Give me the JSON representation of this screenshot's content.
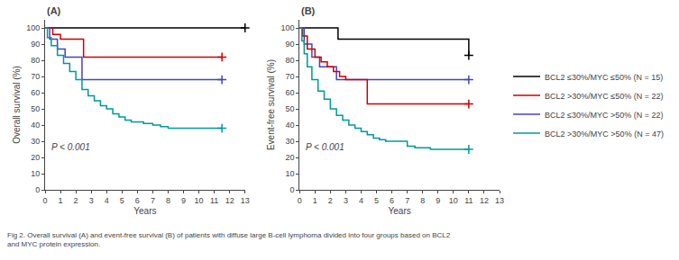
{
  "chart_data": [
    {
      "type": "line",
      "title": "(A)",
      "x_label": "Years",
      "y_label": "Overall survival (%)",
      "xlim": [
        0,
        13
      ],
      "ylim": [
        0,
        105
      ],
      "xticks": [
        0,
        1,
        2,
        3,
        4,
        5,
        6,
        7,
        8,
        9,
        10,
        11,
        12,
        13
      ],
      "yticks": [
        0,
        10,
        20,
        30,
        40,
        50,
        60,
        70,
        80,
        90,
        100
      ],
      "grid": false,
      "legend": "right",
      "line_style": "step",
      "annotations": [
        {
          "text": "P < 0.001",
          "x": 0.3,
          "y": 22
        }
      ],
      "series": [
        {
          "name": "BCL2 ≤30%/MYC ≤50% (N = 15)",
          "color": "#000000",
          "x": [
            0,
            6.0,
            11.5,
            13
          ],
          "values": [
            100,
            100,
            100,
            100
          ]
        },
        {
          "name": "BCL2 >30%/MYC ≤50% (N = 22)",
          "color": "#cc0000",
          "x": [
            0,
            0.5,
            1.0,
            2.4,
            2.5,
            5.4,
            5.5,
            8.0,
            11.5
          ],
          "values": [
            100,
            96,
            93,
            93,
            82,
            82,
            82,
            82,
            82
          ]
        },
        {
          "name": "BCL2 ≤30%/MYC >50% (N = 22)",
          "color": "#4444bb",
          "x": [
            0,
            0.3,
            0.8,
            1.3,
            2.3,
            2.4,
            4.5,
            8.0,
            11.5
          ],
          "values": [
            100,
            93,
            87,
            82,
            82,
            68,
            68,
            68,
            68
          ]
        },
        {
          "name": "BCL2 >30%/MYC >50% (N = 47)",
          "color": "#009999",
          "x": [
            0,
            0.15,
            0.4,
            0.8,
            1.2,
            1.6,
            2.0,
            2.4,
            2.8,
            3.2,
            3.6,
            4.0,
            4.4,
            4.8,
            5.2,
            5.6,
            6.0,
            6.4,
            7.0,
            7.5,
            8.0,
            8.5,
            11.5
          ],
          "values": [
            100,
            94,
            89,
            83,
            78,
            73,
            68,
            62,
            58,
            55,
            52,
            50,
            47,
            45,
            43,
            42,
            42,
            41,
            40,
            39,
            38,
            38,
            38
          ]
        }
      ]
    },
    {
      "type": "line",
      "title": "(B)",
      "x_label": "Years",
      "y_label": "Event-free survival (%)",
      "xlim": [
        0,
        13
      ],
      "ylim": [
        0,
        105
      ],
      "xticks": [
        0,
        1,
        2,
        3,
        4,
        5,
        6,
        7,
        8,
        9,
        10,
        11,
        12,
        13
      ],
      "yticks": [
        0,
        10,
        20,
        30,
        40,
        50,
        60,
        70,
        80,
        90,
        100
      ],
      "grid": false,
      "legend": "right",
      "line_style": "step",
      "annotations": [
        {
          "text": "P < 0.001",
          "x": 0.3,
          "y": 22
        }
      ],
      "series": [
        {
          "name": "BCL2 ≤30%/MYC ≤50% (N = 15)",
          "color": "#000000",
          "x": [
            0,
            0.3,
            2.5,
            5.5,
            11.0
          ],
          "values": [
            100,
            100,
            93,
            93,
            83
          ]
        },
        {
          "name": "BCL2 ≤30%/MYC >50% (N = 22)",
          "color": "#4444bb",
          "x": [
            0,
            0.3,
            0.8,
            1.3,
            2.3,
            2.4,
            4.5,
            6.0,
            11.0
          ],
          "values": [
            100,
            90,
            82,
            76,
            76,
            68,
            68,
            68,
            68
          ]
        },
        {
          "name": "BCL2 >30%/MYC ≤50% (N = 22)",
          "color": "#cc0000",
          "x": [
            0,
            0.2,
            0.5,
            1.0,
            1.4,
            1.8,
            2.2,
            2.6,
            3.0,
            3.4,
            4.4,
            4.8,
            5.2,
            11.0
          ],
          "values": [
            100,
            95,
            87,
            82,
            79,
            76,
            73,
            70,
            68,
            68,
            53,
            53,
            53,
            53
          ]
        },
        {
          "name": "BCL2 >30%/MYC >50% (N = 47)",
          "color": "#009999",
          "x": [
            0,
            0.15,
            0.3,
            0.5,
            0.8,
            1.2,
            1.6,
            2.0,
            2.4,
            2.8,
            3.2,
            3.6,
            4.0,
            4.4,
            4.8,
            5.2,
            5.6,
            6.0,
            7.0,
            7.5,
            8.0,
            8.5,
            11.0
          ],
          "values": [
            100,
            92,
            84,
            76,
            68,
            61,
            56,
            50,
            46,
            43,
            40,
            38,
            36,
            34,
            32,
            31,
            30,
            30,
            27,
            26,
            26,
            25,
            25
          ]
        }
      ]
    }
  ],
  "caption": "Fig 2. Overall survival (A) and event-free survival (B) of patients with diffuse large B-cell lymphoma divided into four groups based on BCL2\nand MYC protein expression."
}
